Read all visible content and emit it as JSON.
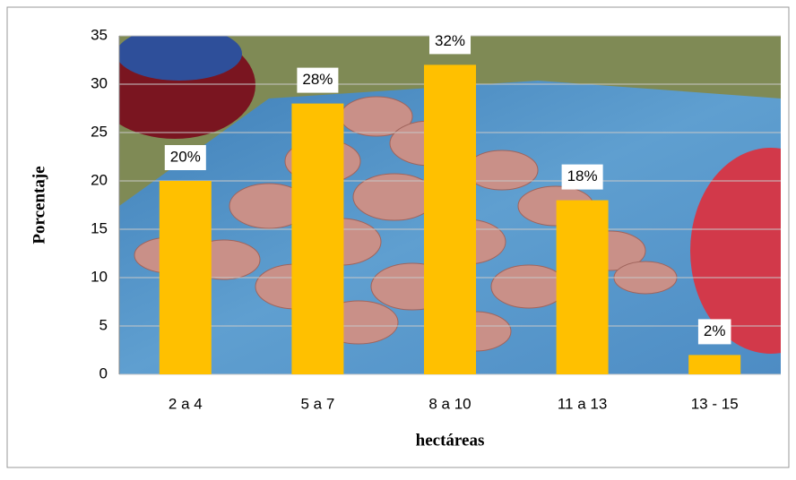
{
  "chart_data": {
    "type": "bar",
    "categories": [
      "2 a 4",
      "5 a 7",
      "8 a 10",
      "11 a 13",
      "13 - 15"
    ],
    "values": [
      20,
      28,
      32,
      18,
      2
    ],
    "value_labels": [
      "20%",
      "28%",
      "32%",
      "18%",
      "2%"
    ],
    "color": "#ffc000",
    "ylim": [
      0,
      35
    ],
    "yticks": [
      0,
      5,
      10,
      15,
      20,
      25,
      30,
      35
    ],
    "grid": true,
    "xlabel": "hectáreas",
    "ylabel": "Porcentaje"
  }
}
